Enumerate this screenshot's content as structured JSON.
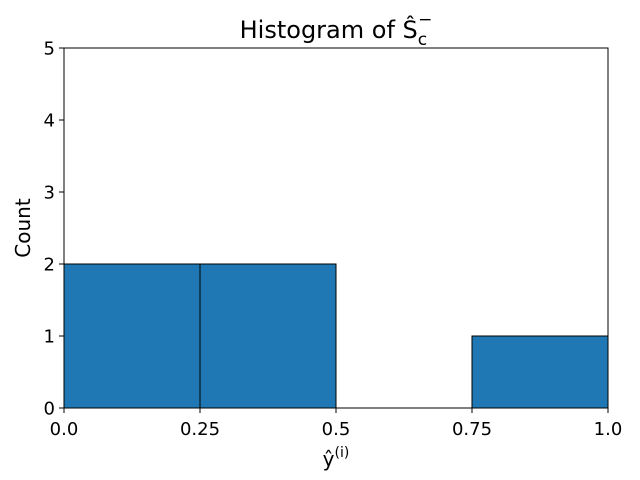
{
  "chart_data": {
    "type": "histogram",
    "title": "Histogram of Ŝ",
    "title_subscript": "c",
    "title_superscript": "−",
    "xlabel": "ŷ",
    "xlabel_superscript": "(i)",
    "ylabel": "Count",
    "bins": [
      0,
      0.25,
      0.5,
      0.75,
      1.0
    ],
    "values": [
      2,
      2,
      0,
      1
    ],
    "color": "#1f77b4",
    "edgecolor": "#000000",
    "xlim": [
      0,
      1.0
    ],
    "xticks": [
      {
        "value": 0,
        "label": "0.0"
      },
      0.25,
      0.5,
      0.75,
      {
        "value": 1.0,
        "label": "1.0"
      }
    ],
    "ylim": [
      0,
      5
    ],
    "yticks": [
      0,
      1,
      2,
      3,
      4,
      5
    ],
    "grid": false
  }
}
